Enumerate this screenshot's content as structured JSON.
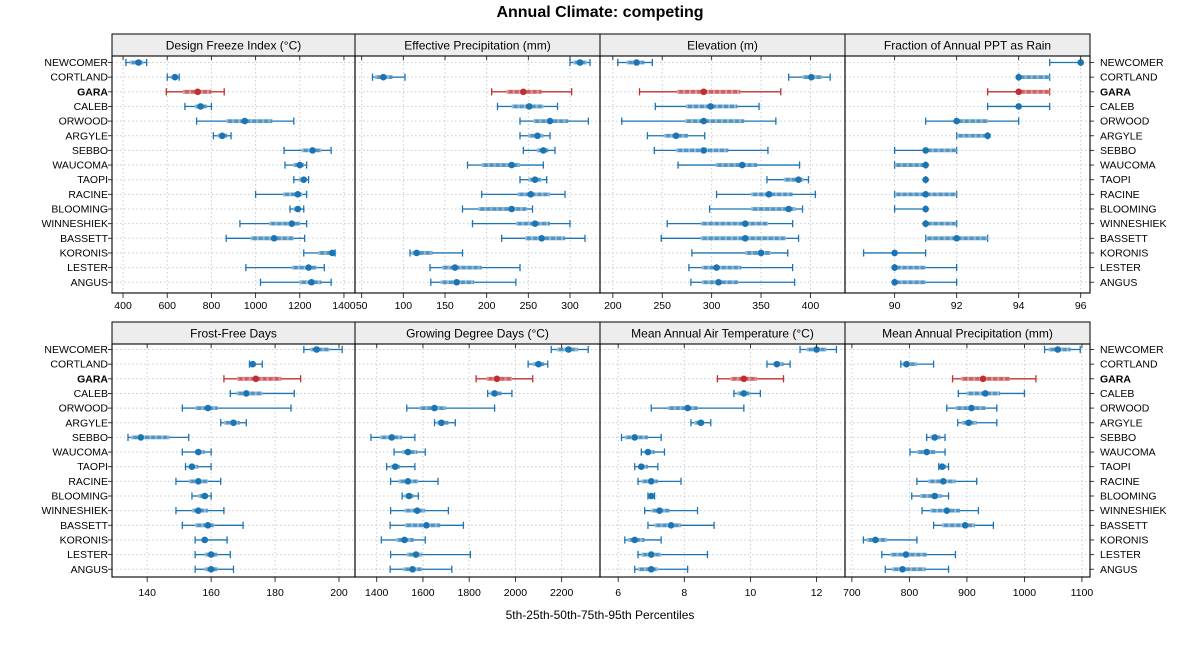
{
  "header": {
    "title": "Annual Climate: competing"
  },
  "footer": {
    "caption": "5th-25th-50th-75th-95th Percentiles"
  },
  "colors": {
    "series_blue": "#1b74b4",
    "highlight_red": "#bf2f30",
    "strip_background": "#ededed",
    "grid_line": "#c6ccd3",
    "panel_border": "#000000"
  },
  "chart_data": {
    "type": "dotplot",
    "subtype": "5-25-50-75-95 percentile intervals (dot = median, thick = 25th-75th, thin = 5th-95th)",
    "percentile_labels": [
      "5th",
      "25th",
      "50th",
      "75th",
      "95th"
    ],
    "rows_top_to_bottom": [
      "NEWCOMER",
      "CORTLAND",
      "GARA",
      "CALEB",
      "ORWOOD",
      "ARGYLE",
      "SEBBO",
      "WAUCOMA",
      "TAOPI",
      "RACINE",
      "BLOOMING",
      "WINNESHIEK",
      "BASSETT",
      "KORONIS",
      "LESTER",
      "ANGUS"
    ],
    "highlight_row": "GARA",
    "legend_position": "none",
    "grid": "dashed horizontal per row and vertical per tick",
    "panels": [
      {
        "title": "Design Freeze Index (°C)",
        "grid_row": 1,
        "grid_col": 1,
        "xlim": [
          350,
          1450
        ],
        "ticks": [
          400,
          600,
          800,
          1000,
          1200,
          1400
        ],
        "values": {
          "NEWCOMER": [
            413,
            431,
            470,
            492,
            507
          ],
          "CORTLAND": [
            600,
            618,
            635,
            648,
            654
          ],
          "GARA": [
            596,
            671,
            738,
            800,
            858
          ],
          "CALEB": [
            680,
            724,
            751,
            778,
            800
          ],
          "ORWOOD": [
            733,
            867,
            951,
            1076,
            1173
          ],
          "ARGYLE": [
            809,
            827,
            849,
            871,
            889
          ],
          "SEBBO": [
            1129,
            1209,
            1258,
            1298,
            1342
          ],
          "WAUCOMA": [
            1133,
            1169,
            1200,
            1218,
            1231
          ],
          "TAOPI": [
            1173,
            1196,
            1218,
            1231,
            1240
          ],
          "RACINE": [
            1000,
            1124,
            1191,
            1213,
            1231
          ],
          "BLOOMING": [
            1156,
            1173,
            1191,
            1204,
            1218
          ],
          "WINNESHIEK": [
            929,
            1062,
            1164,
            1200,
            1231
          ],
          "BASSETT": [
            867,
            978,
            1084,
            1173,
            1222
          ],
          "KORONIS": [
            1218,
            1284,
            1347,
            1356,
            1360
          ],
          "LESTER": [
            956,
            1164,
            1240,
            1276,
            1311
          ],
          "ANGUS": [
            1022,
            1200,
            1253,
            1298,
            1342
          ]
        }
      },
      {
        "title": "Effective Precipitation (mm)",
        "grid_row": 1,
        "grid_col": 2,
        "xlim": [
          42,
          336
        ],
        "ticks": [
          50,
          100,
          150,
          200,
          250,
          300
        ],
        "values": {
          "NEWCOMER": [
            300,
            304,
            312,
            320,
            324
          ],
          "CORTLAND": [
            63,
            66,
            76,
            87,
            102
          ],
          "GARA": [
            206,
            224,
            244,
            266,
            302
          ],
          "CALEB": [
            213,
            230,
            251,
            268,
            285
          ],
          "ORWOOD": [
            240,
            256,
            276,
            298,
            322
          ],
          "ARGYLE": [
            240,
            250,
            261,
            268,
            276
          ],
          "SEBBO": [
            244,
            260,
            268,
            274,
            282
          ],
          "WAUCOMA": [
            177,
            194,
            230,
            240,
            268
          ],
          "TAOPI": [
            240,
            250,
            258,
            266,
            272
          ],
          "RACINE": [
            194,
            237,
            253,
            276,
            294
          ],
          "BLOOMING": [
            171,
            190,
            230,
            248,
            255
          ],
          "WINNESHIEK": [
            183,
            235,
            258,
            276,
            300
          ],
          "BASSETT": [
            218,
            246,
            266,
            294,
            318
          ],
          "KORONIS": [
            108,
            110,
            116,
            135,
            171
          ],
          "LESTER": [
            132,
            146,
            162,
            194,
            240
          ],
          "ANGUS": [
            133,
            145,
            164,
            185,
            235
          ]
        }
      },
      {
        "title": "Elevation (m)",
        "grid_row": 1,
        "grid_col": 3,
        "xlim": [
          187,
          435
        ],
        "ticks": [
          200,
          250,
          300,
          350,
          400
        ],
        "values": {
          "NEWCOMER": [
            205,
            214,
            224,
            232,
            240
          ],
          "CORTLAND": [
            378,
            392,
            401,
            412,
            420
          ],
          "GARA": [
            227,
            265,
            292,
            329,
            370
          ],
          "CALEB": [
            243,
            274,
            299,
            326,
            348
          ],
          "ORWOOD": [
            209,
            273,
            292,
            333,
            365
          ],
          "ARGYLE": [
            235,
            252,
            264,
            276,
            293
          ],
          "SEBBO": [
            242,
            264,
            292,
            317,
            357
          ],
          "WAUCOMA": [
            266,
            304,
            331,
            346,
            389
          ],
          "TAOPI": [
            356,
            373,
            388,
            393,
            398
          ],
          "RACINE": [
            305,
            340,
            358,
            382,
            405
          ],
          "BLOOMING": [
            298,
            340,
            378,
            385,
            392
          ],
          "WINNESHIEK": [
            255,
            289,
            334,
            357,
            382
          ],
          "BASSETT": [
            249,
            289,
            334,
            375,
            388
          ],
          "KORONIS": [
            280,
            334,
            350,
            360,
            377
          ],
          "LESTER": [
            277,
            290,
            305,
            330,
            382
          ],
          "ANGUS": [
            279,
            290,
            307,
            327,
            384
          ]
        }
      },
      {
        "title": "Fraction of Annual PPT as Rain",
        "grid_row": 1,
        "grid_col": 4,
        "xlim": [
          88.4,
          96.3
        ],
        "ticks": [
          90,
          92,
          94,
          96
        ],
        "values": {
          "NEWCOMER": [
            95,
            96,
            96,
            96,
            96
          ],
          "CORTLAND": [
            94,
            94,
            94,
            95,
            95
          ],
          "GARA": [
            93,
            94,
            94,
            95,
            95
          ],
          "CALEB": [
            93,
            94,
            94,
            94,
            95
          ],
          "ORWOOD": [
            91,
            92,
            92,
            93,
            94
          ],
          "ARGYLE": [
            92,
            92,
            93,
            93,
            93
          ],
          "SEBBO": [
            90,
            91,
            91,
            92,
            92
          ],
          "WAUCOMA": [
            90,
            90,
            91,
            91,
            91
          ],
          "TAOPI": [
            91,
            91,
            91,
            91,
            91
          ],
          "RACINE": [
            90,
            90,
            91,
            92,
            92
          ],
          "BLOOMING": [
            90,
            91,
            91,
            91,
            91
          ],
          "WINNESHIEK": [
            91,
            91,
            91,
            92,
            92
          ],
          "BASSETT": [
            91,
            91,
            92,
            93,
            93
          ],
          "KORONIS": [
            89,
            90,
            90,
            90,
            91
          ],
          "LESTER": [
            90,
            90,
            90,
            91,
            92
          ],
          "ANGUS": [
            90,
            90,
            90,
            91,
            92
          ]
        }
      },
      {
        "title": "Frost-Free Days",
        "grid_row": 2,
        "grid_col": 1,
        "xlim": [
          129,
          205
        ],
        "ticks": [
          140,
          160,
          180,
          200
        ],
        "values": {
          "NEWCOMER": [
            189,
            191,
            193,
            197,
            201
          ],
          "CORTLAND": [
            172,
            172,
            173,
            174,
            176
          ],
          "GARA": [
            164,
            168,
            174,
            182,
            188
          ],
          "CALEB": [
            166,
            168,
            171,
            176,
            186
          ],
          "ORWOOD": [
            151,
            155,
            159,
            162,
            185
          ],
          "ARGYLE": [
            163,
            164,
            167,
            169,
            171
          ],
          "SEBBO": [
            134,
            135,
            138,
            147,
            153
          ],
          "WAUCOMA": [
            151,
            155,
            156,
            158,
            160
          ],
          "TAOPI": [
            152,
            153,
            154,
            156,
            160
          ],
          "RACINE": [
            149,
            153,
            156,
            159,
            163
          ],
          "BLOOMING": [
            154,
            156,
            158,
            159,
            160
          ],
          "WINNESHIEK": [
            149,
            154,
            156,
            159,
            164
          ],
          "BASSETT": [
            151,
            155,
            159,
            161,
            170
          ],
          "KORONIS": [
            155,
            157,
            158,
            159,
            165
          ],
          "LESTER": [
            155,
            158,
            160,
            162,
            166
          ],
          "ANGUS": [
            155,
            158,
            160,
            162,
            167
          ]
        }
      },
      {
        "title": "Growing Degree Days (°C)",
        "grid_row": 2,
        "grid_col": 2,
        "xlim": [
          1306,
          2366
        ],
        "ticks": [
          1400,
          1600,
          1800,
          2000,
          2200
        ],
        "values": {
          "NEWCOMER": [
            2155,
            2180,
            2230,
            2270,
            2315
          ],
          "CORTLAND": [
            2055,
            2075,
            2100,
            2125,
            2140
          ],
          "GARA": [
            1830,
            1875,
            1920,
            1985,
            2075
          ],
          "CALEB": [
            1880,
            1890,
            1910,
            1940,
            1985
          ],
          "ORWOOD": [
            1530,
            1585,
            1650,
            1700,
            1910
          ],
          "ARGYLE": [
            1650,
            1660,
            1680,
            1710,
            1740
          ],
          "SEBBO": [
            1375,
            1415,
            1465,
            1510,
            1565
          ],
          "WAUCOMA": [
            1475,
            1510,
            1535,
            1575,
            1610
          ],
          "TAOPI": [
            1443,
            1458,
            1480,
            1500,
            1565
          ],
          "RACINE": [
            1460,
            1495,
            1535,
            1580,
            1665
          ],
          "BLOOMING": [
            1510,
            1520,
            1540,
            1560,
            1580
          ],
          "WINNESHIEK": [
            1460,
            1520,
            1575,
            1610,
            1710
          ],
          "BASSETT": [
            1458,
            1522,
            1615,
            1675,
            1775
          ],
          "KORONIS": [
            1420,
            1485,
            1520,
            1560,
            1610
          ],
          "LESTER": [
            1460,
            1530,
            1570,
            1595,
            1805
          ],
          "ANGUS": [
            1458,
            1515,
            1555,
            1595,
            1725
          ]
        }
      },
      {
        "title": "Mean Annual Air Temperature (°C)",
        "grid_row": 2,
        "grid_col": 3,
        "xlim": [
          5.45,
          12.86
        ],
        "ticks": [
          6,
          8,
          10,
          12
        ],
        "values": {
          "NEWCOMER": [
            11.5,
            11.7,
            12.0,
            12.3,
            12.6
          ],
          "CORTLAND": [
            10.5,
            10.7,
            10.8,
            11.0,
            11.2
          ],
          "GARA": [
            9.0,
            9.4,
            9.8,
            10.2,
            11.0
          ],
          "CALEB": [
            9.5,
            9.6,
            9.8,
            10.0,
            10.3
          ],
          "ORWOOD": [
            7.0,
            7.5,
            8.1,
            8.4,
            9.8
          ],
          "ARGYLE": [
            8.2,
            8.3,
            8.5,
            8.6,
            8.8
          ],
          "SEBBO": [
            6.1,
            6.2,
            6.5,
            6.9,
            7.3
          ],
          "WAUCOMA": [
            6.7,
            6.8,
            6.9,
            7.1,
            7.4
          ],
          "TAOPI": [
            6.5,
            6.6,
            6.7,
            6.9,
            7.2
          ],
          "RACINE": [
            6.6,
            6.7,
            7.0,
            7.2,
            7.9
          ],
          "BLOOMING": [
            6.9,
            6.9,
            7.0,
            7.0,
            7.1
          ],
          "WINNESHIEK": [
            6.8,
            7.0,
            7.25,
            7.55,
            8.4
          ],
          "BASSETT": [
            6.9,
            7.1,
            7.6,
            7.9,
            8.9
          ],
          "KORONIS": [
            6.2,
            6.3,
            6.5,
            6.8,
            7.3
          ],
          "LESTER": [
            6.6,
            6.7,
            7.0,
            7.3,
            8.7
          ],
          "ANGUS": [
            6.5,
            6.6,
            7.0,
            7.2,
            8.1
          ]
        }
      },
      {
        "title": "Mean Annual Precipitation (mm)",
        "grid_row": 2,
        "grid_col": 4,
        "xlim": [
          688,
          1114
        ],
        "ticks": [
          700,
          800,
          900,
          1000,
          1100
        ],
        "values": {
          "NEWCOMER": [
            1035,
            1042,
            1058,
            1080,
            1097
          ],
          "CORTLAND": [
            785,
            788,
            795,
            813,
            842
          ],
          "GARA": [
            875,
            890,
            928,
            975,
            1020
          ],
          "CALEB": [
            885,
            900,
            932,
            958,
            1000
          ],
          "ORWOOD": [
            865,
            880,
            908,
            932,
            952
          ],
          "ARGYLE": [
            884,
            891,
            903,
            917,
            952
          ],
          "SEBBO": [
            830,
            836,
            844,
            854,
            862
          ],
          "WAUCOMA": [
            801,
            813,
            830,
            845,
            862
          ],
          "TAOPI": [
            851,
            853,
            857,
            864,
            868
          ],
          "RACINE": [
            813,
            833,
            859,
            880,
            917
          ],
          "BLOOMING": [
            804,
            819,
            844,
            856,
            868
          ],
          "WINNESHIEK": [
            822,
            836,
            865,
            888,
            920
          ],
          "BASSETT": [
            842,
            857,
            897,
            914,
            946
          ],
          "KORONIS": [
            720,
            726,
            741,
            761,
            813
          ],
          "LESTER": [
            752,
            767,
            794,
            830,
            880
          ],
          "ANGUS": [
            758,
            770,
            788,
            828,
            868
          ]
        }
      }
    ]
  }
}
